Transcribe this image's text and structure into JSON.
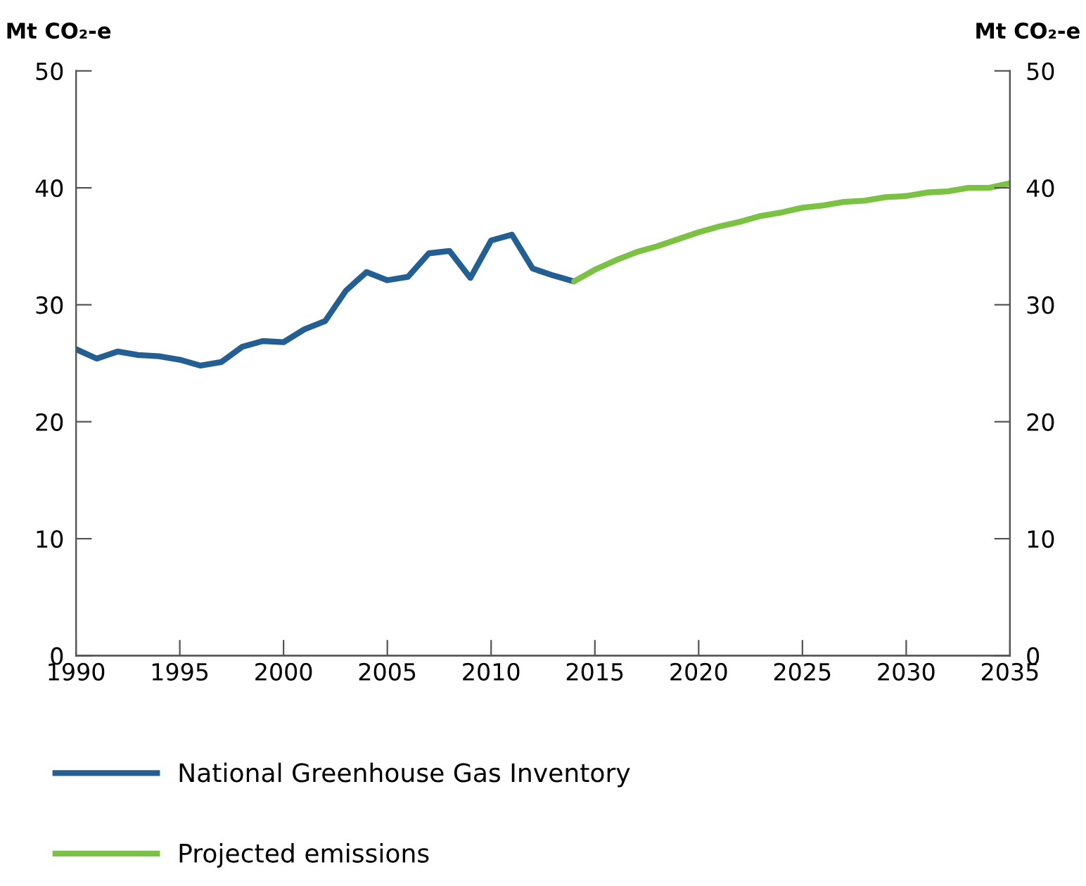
{
  "chart_data": {
    "type": "line",
    "ylabel": "Mt CO₂-e",
    "y2label": "Mt CO₂-e",
    "xlim": [
      1990,
      2035
    ],
    "xticks": [
      1990,
      1995,
      2000,
      2005,
      2010,
      2015,
      2020,
      2025,
      2030,
      2035
    ],
    "ylim": [
      0,
      50
    ],
    "yticks": [
      0,
      10,
      20,
      30,
      40,
      50
    ],
    "y2lim": [
      0,
      50
    ],
    "y2ticks": [
      0,
      10,
      20,
      30,
      40,
      50
    ],
    "grid": false,
    "legend": "bottom left",
    "marker": "none",
    "line_style": "solid",
    "series": [
      {
        "name": "National Greenhouse Gas Inventory",
        "color": "#245f94",
        "x": [
          1990,
          1991,
          1992,
          1993,
          1994,
          1995,
          1996,
          1997,
          1998,
          1999,
          2000,
          2001,
          2002,
          2003,
          2004,
          2005,
          2006,
          2007,
          2008,
          2009,
          2010,
          2011,
          2012,
          2013,
          2014
        ],
        "values": [
          26.2,
          25.4,
          26.0,
          25.7,
          25.6,
          25.3,
          24.8,
          25.1,
          26.4,
          26.9,
          26.8,
          27.9,
          28.6,
          31.2,
          32.8,
          32.1,
          32.4,
          34.4,
          34.6,
          32.3,
          35.5,
          36.0,
          33.1,
          32.5,
          32.0
        ]
      },
      {
        "name": "Projected emissions",
        "color": "#7bc143",
        "x": [
          2014,
          2015,
          2016,
          2017,
          2018,
          2019,
          2020,
          2021,
          2022,
          2023,
          2024,
          2025,
          2026,
          2027,
          2028,
          2029,
          2030,
          2031,
          2032,
          2033,
          2034,
          2035
        ],
        "values": [
          32.0,
          33.0,
          33.8,
          34.5,
          35.0,
          35.6,
          36.2,
          36.7,
          37.1,
          37.6,
          37.9,
          38.3,
          38.5,
          38.8,
          38.9,
          39.2,
          39.3,
          39.6,
          39.7,
          40.0,
          40.0,
          40.4
        ]
      }
    ]
  }
}
